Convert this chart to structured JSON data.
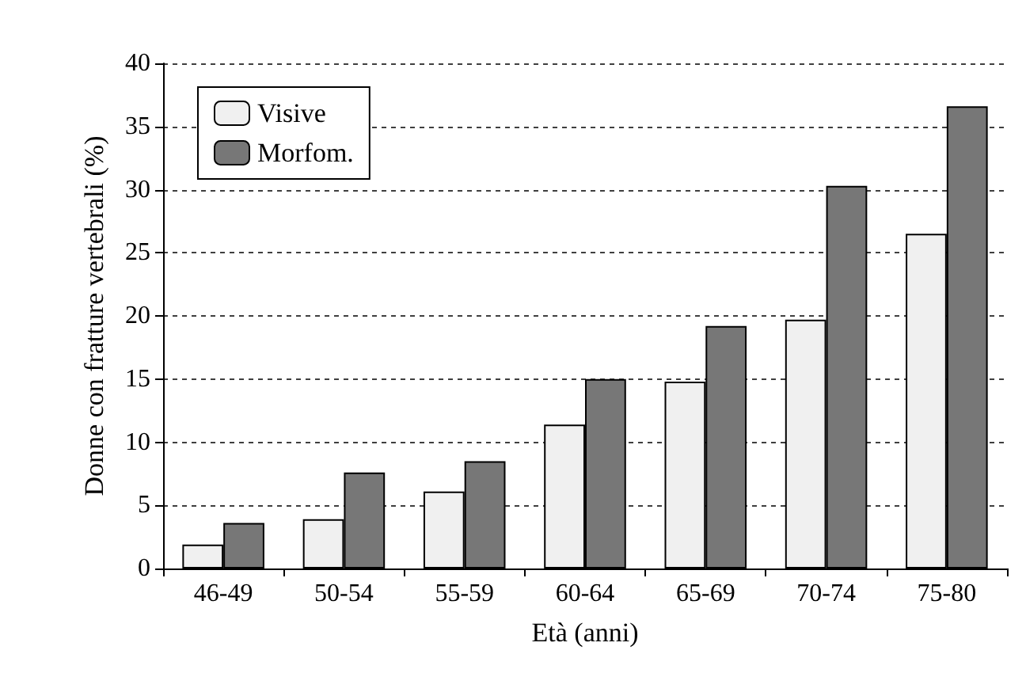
{
  "chart_data": {
    "type": "bar",
    "xlabel": "Età (anni)",
    "ylabel": "Donne con fratture vertebrali (%)",
    "categories": [
      "46-49",
      "50-54",
      "55-59",
      "60-64",
      "65-69",
      "70-74",
      "75-80"
    ],
    "series": [
      {
        "name": "Visive",
        "color": "#f0f0f0",
        "values": [
          1.9,
          3.9,
          6.1,
          11.4,
          14.8,
          19.7,
          26.5
        ]
      },
      {
        "name": "Morfom.",
        "color": "#777777",
        "values": [
          3.6,
          7.6,
          8.5,
          15.0,
          19.2,
          30.3,
          36.6
        ]
      }
    ],
    "ylim": [
      0,
      40
    ],
    "yticks": [
      0,
      5,
      10,
      15,
      20,
      25,
      30,
      35,
      40
    ],
    "grid": "y",
    "legend": "top left"
  }
}
